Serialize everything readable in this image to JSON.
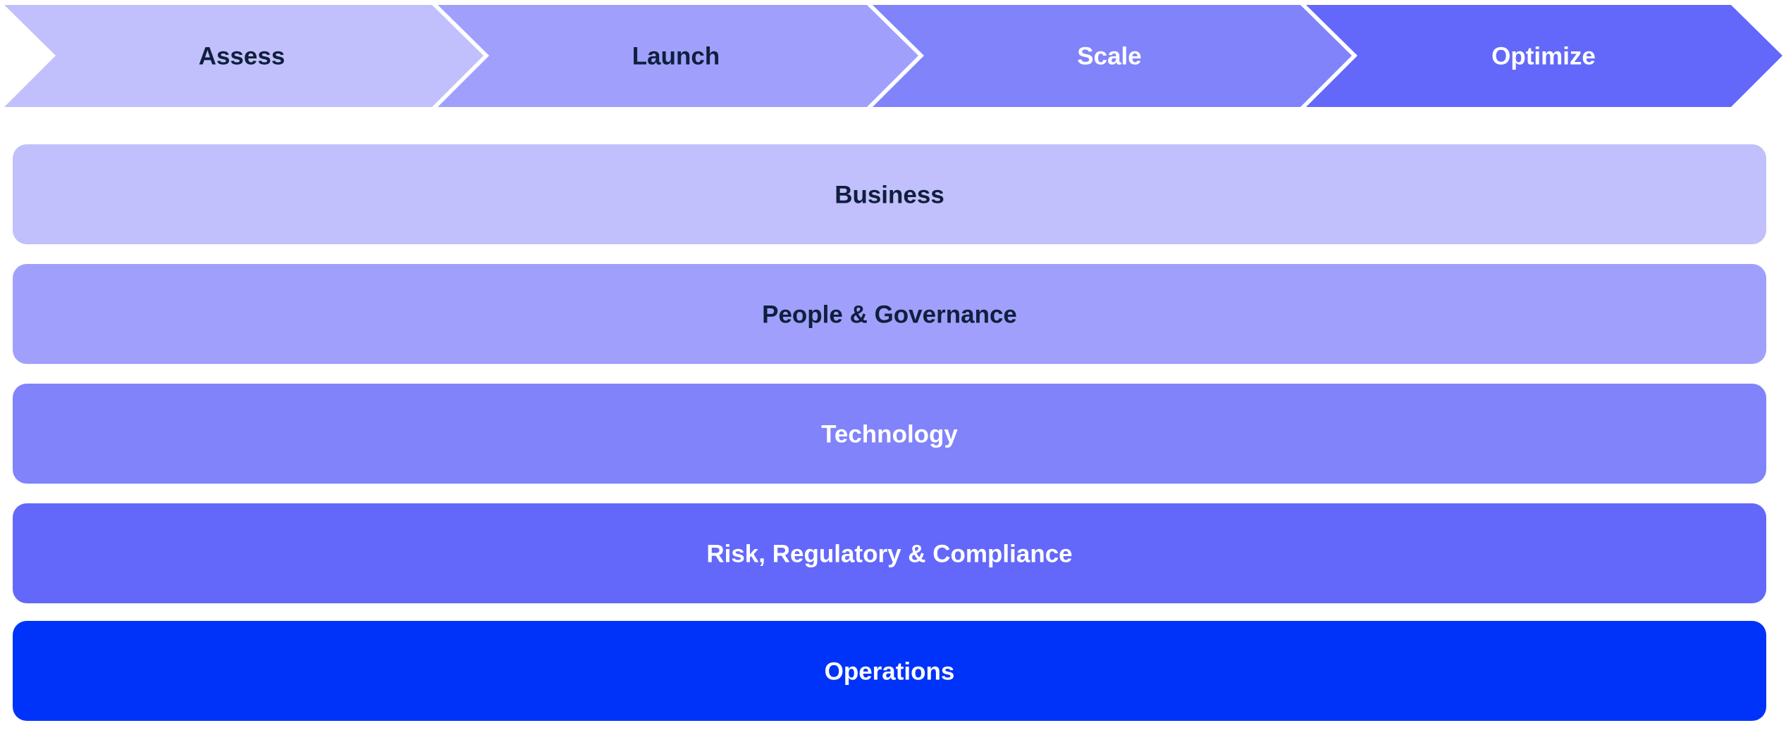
{
  "stages": [
    {
      "label": "Assess",
      "fill": "#c1c0fc",
      "text_color": "#0f1f3d"
    },
    {
      "label": "Launch",
      "fill": "#a0a0fc",
      "text_color": "#0f1f3d"
    },
    {
      "label": "Scale",
      "fill": "#8083fa",
      "text_color": "#ffffff"
    },
    {
      "label": "Optimize",
      "fill": "#6368fa",
      "text_color": "#ffffff"
    }
  ],
  "layers": [
    {
      "label": "Business",
      "fill": "#c1c0fc",
      "text_color": "#0f1f3d"
    },
    {
      "label": "People & Governance",
      "fill": "#a0a0fc",
      "text_color": "#0f1f3d"
    },
    {
      "label": "Technology",
      "fill": "#8083fa",
      "text_color": "#ffffff"
    },
    {
      "label": "Risk, Regulatory & Compliance",
      "fill": "#6368fa",
      "text_color": "#ffffff"
    },
    {
      "label": "Operations",
      "fill": "#0033fa",
      "text_color": "#ffffff"
    }
  ]
}
